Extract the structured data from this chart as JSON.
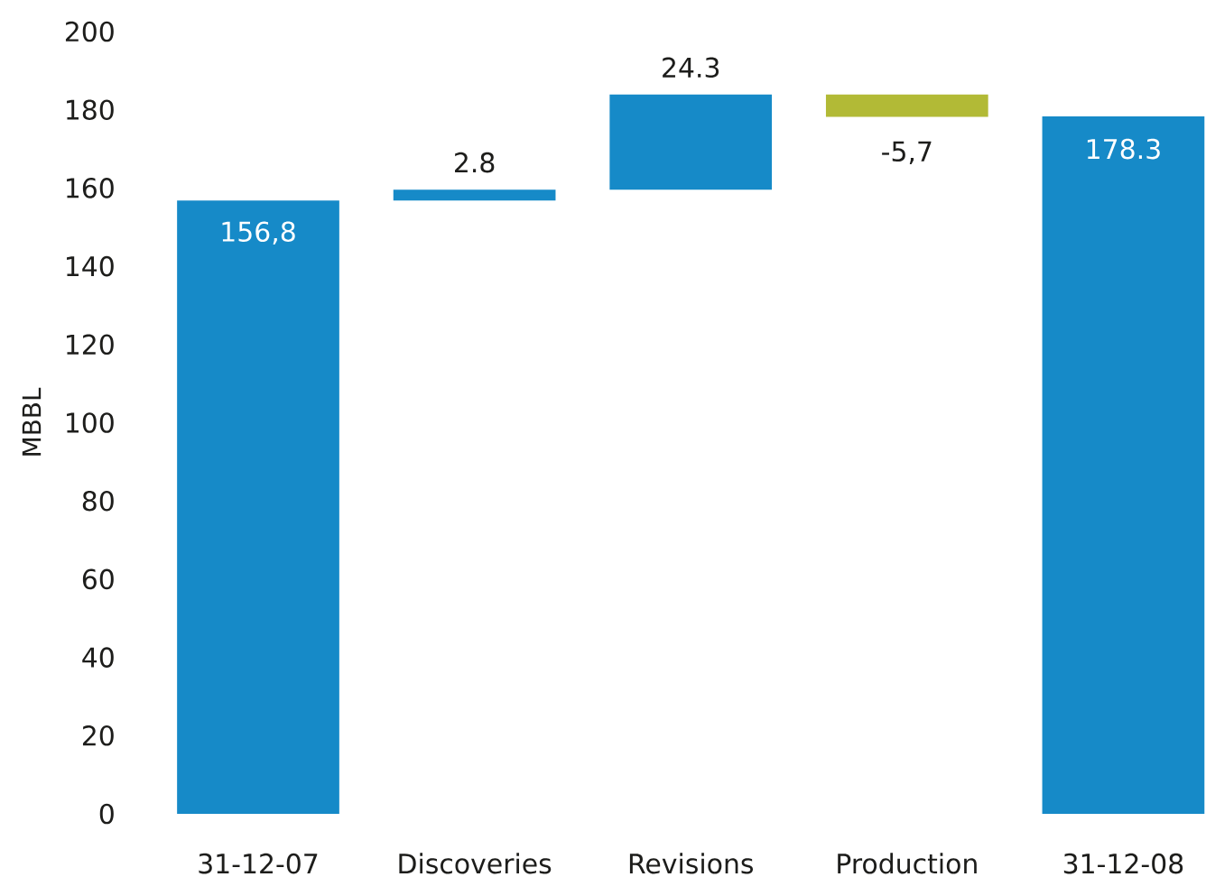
{
  "chart_data": {
    "type": "bar",
    "ylabel": "MBBL",
    "categories": [
      "31-12-07",
      "Discoveries",
      "Revisions",
      "Production",
      "31-12-08"
    ],
    "values": [
      156.8,
      2.8,
      24.3,
      -5.7,
      178.3
    ],
    "base": [
      0,
      156.8,
      159.6,
      183.9,
      0
    ],
    "colors": [
      "#168ac8",
      "#168ac8",
      "#168ac8",
      "#b2ba36",
      "#168ac8"
    ],
    "value_labels": [
      "156,8",
      "2.8",
      "24.3",
      "-5,7",
      "178.3"
    ],
    "ylim": [
      0,
      200
    ],
    "yticks": [
      0,
      20,
      40,
      60,
      80,
      100,
      120,
      140,
      160,
      180,
      200
    ]
  }
}
